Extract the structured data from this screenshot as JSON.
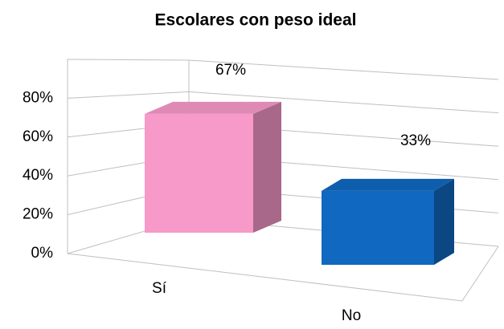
{
  "chart_data": {
    "type": "bar3d",
    "title": "Escolares con peso ideal",
    "categories": [
      "Sí",
      "No"
    ],
    "values": [
      67,
      33
    ],
    "value_labels": [
      "67%",
      "33%"
    ],
    "colors": [
      "#f799c9",
      "#1068c0"
    ],
    "ylim": [
      0,
      100
    ],
    "yticks": [
      {
        "value": 0,
        "label": "0%"
      },
      {
        "value": 20,
        "label": "20%"
      },
      {
        "value": 40,
        "label": "40%"
      },
      {
        "value": 60,
        "label": "60%"
      },
      {
        "value": 80,
        "label": "80%"
      }
    ],
    "grid": true
  }
}
